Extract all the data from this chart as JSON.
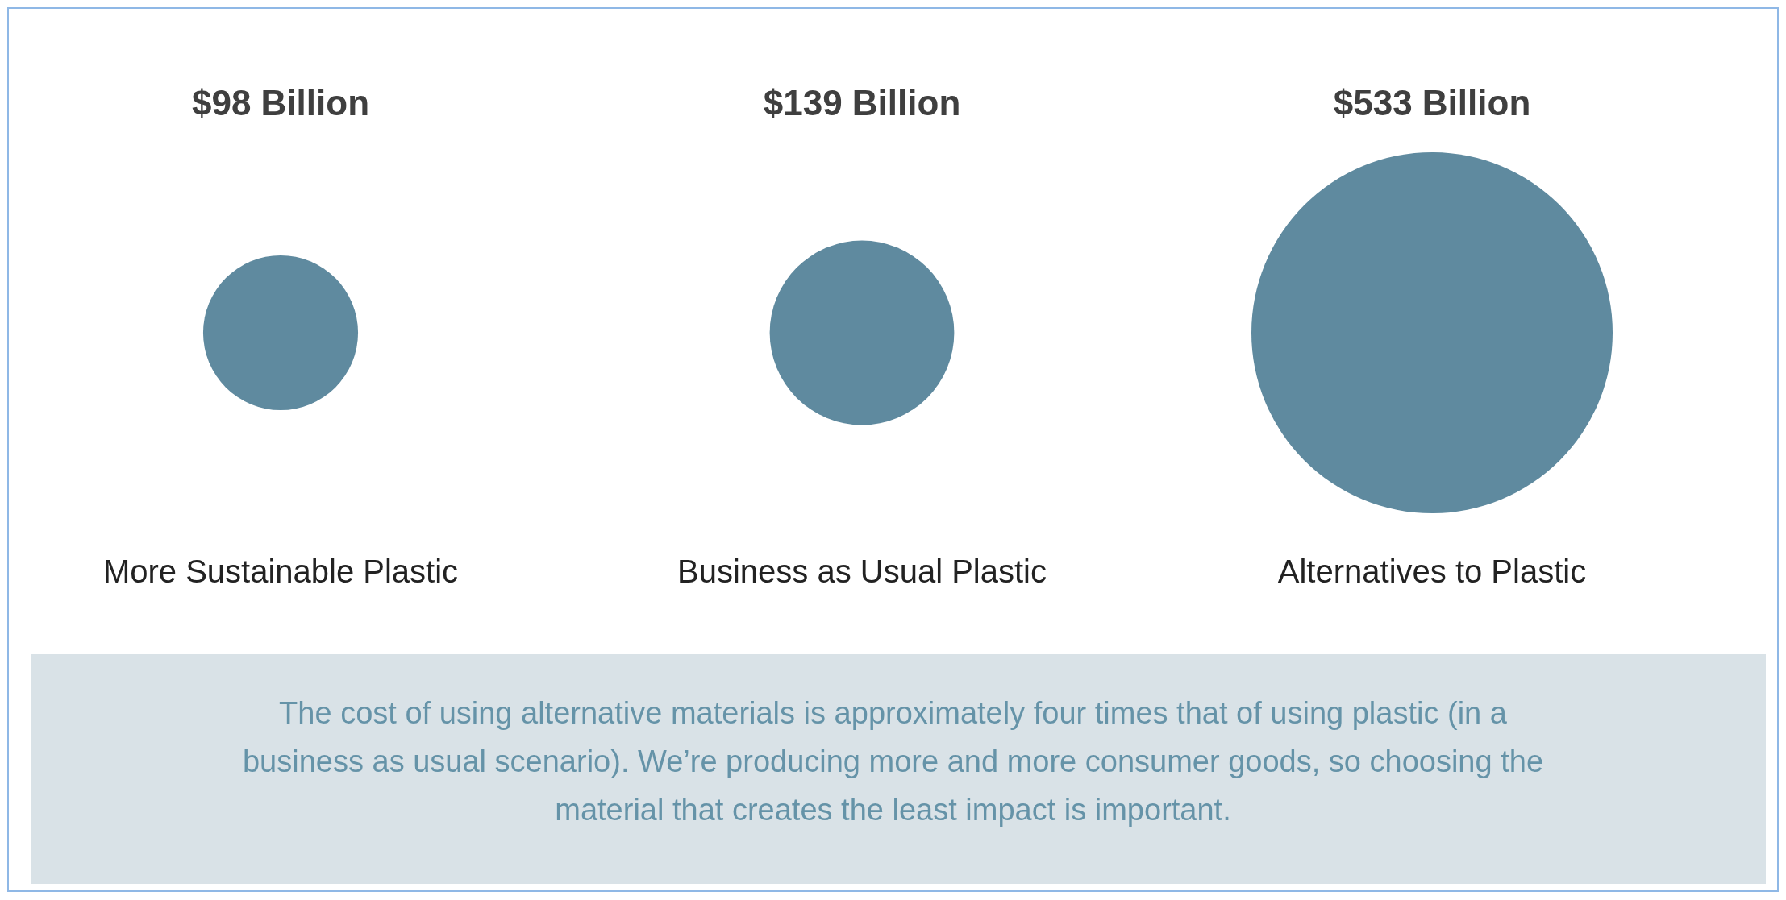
{
  "chart_data": {
    "type": "other",
    "categories": [
      "More Sustainable Plastic",
      "Business as Usual Plastic",
      "Alternatives to Plastic"
    ],
    "values": [
      98,
      139,
      533
    ],
    "value_labels": [
      "$98 Billion",
      "$139 Billion",
      "$533 Billion"
    ],
    "color": "#5f8a9f",
    "annotations": [
      "The cost of using alternative materials is approximately four times that of using plastic (in a business as usual scenario). We’re producing more and more consumer goods, so choosing the material that creates the least impact is important."
    ]
  }
}
